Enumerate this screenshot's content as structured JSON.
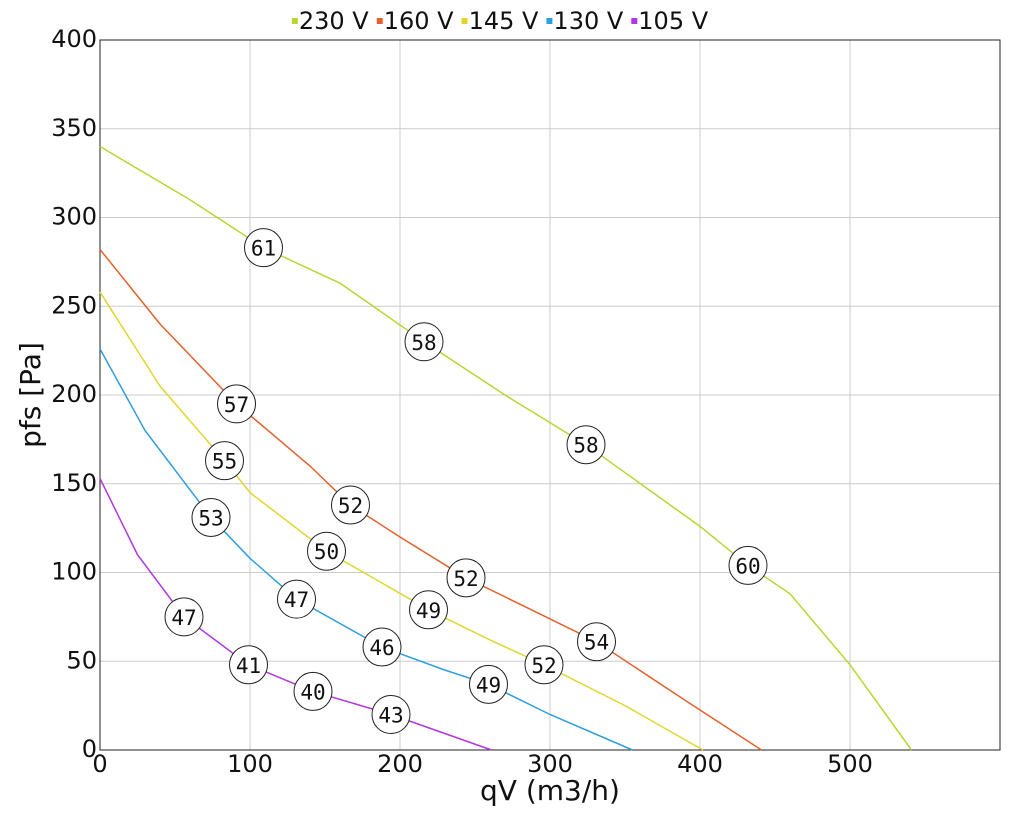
{
  "chart_data": {
    "type": "line",
    "xlabel": "qV (m3/h)",
    "ylabel": "pfs [Pa]",
    "xlim": [
      0,
      600
    ],
    "xticks": [
      0,
      100,
      200,
      300,
      400,
      500
    ],
    "ylim": [
      0,
      400
    ],
    "yticks": [
      0,
      50,
      100,
      150,
      200,
      250,
      300,
      350,
      400
    ],
    "grid": true,
    "legend": "top",
    "series": [
      {
        "name": "230 V",
        "color": "#b9d532",
        "x": [
          0,
          60,
          109,
          160,
          216,
          270,
          324,
          400,
          432,
          460,
          500,
          541
        ],
        "values": [
          340,
          310,
          283,
          263,
          230,
          200,
          172,
          126,
          104,
          88,
          48,
          0
        ]
      },
      {
        "name": "160 V",
        "color": "#e3622c",
        "x": [
          0,
          40,
          91,
          140,
          167,
          200,
          244,
          290,
          331,
          390,
          441
        ],
        "values": [
          282,
          240,
          195,
          160,
          138,
          120,
          97,
          78,
          61,
          28,
          0
        ]
      },
      {
        "name": "145 V",
        "color": "#e2d62e",
        "x": [
          0,
          40,
          83,
          100,
          151,
          219,
          260,
          296,
          350,
          402
        ],
        "values": [
          258,
          205,
          163,
          145,
          112,
          79,
          62,
          48,
          25,
          0
        ]
      },
      {
        "name": "130 V",
        "color": "#2f9ee0",
        "x": [
          0,
          30,
          74,
          100,
          131,
          188,
          230,
          259,
          300,
          355
        ],
        "values": [
          226,
          180,
          131,
          108,
          85,
          58,
          45,
          37,
          20,
          0
        ]
      },
      {
        "name": "105 V",
        "color": "#b236e2",
        "x": [
          0,
          25,
          56,
          99,
          142,
          194,
          261
        ],
        "values": [
          153,
          110,
          75,
          48,
          33,
          20,
          0
        ]
      }
    ],
    "annotations": [
      {
        "x": 109,
        "y": 283,
        "label": 61
      },
      {
        "x": 216,
        "y": 230,
        "label": 58
      },
      {
        "x": 324,
        "y": 172,
        "label": 58
      },
      {
        "x": 432,
        "y": 104,
        "label": 60
      },
      {
        "x": 91,
        "y": 195,
        "label": 57
      },
      {
        "x": 167,
        "y": 138,
        "label": 52
      },
      {
        "x": 244,
        "y": 97,
        "label": 52
      },
      {
        "x": 331,
        "y": 61,
        "label": 54
      },
      {
        "x": 83,
        "y": 163,
        "label": 55
      },
      {
        "x": 151,
        "y": 112,
        "label": 50
      },
      {
        "x": 219,
        "y": 79,
        "label": 49
      },
      {
        "x": 296,
        "y": 48,
        "label": 52
      },
      {
        "x": 74,
        "y": 131,
        "label": 53
      },
      {
        "x": 131,
        "y": 85,
        "label": 47
      },
      {
        "x": 188,
        "y": 58,
        "label": 46
      },
      {
        "x": 259,
        "y": 37,
        "label": 49
      },
      {
        "x": 56,
        "y": 75,
        "label": 47
      },
      {
        "x": 99,
        "y": 48,
        "label": 41
      },
      {
        "x": 142,
        "y": 33,
        "label": 40
      },
      {
        "x": 194,
        "y": 20,
        "label": 43
      }
    ]
  }
}
